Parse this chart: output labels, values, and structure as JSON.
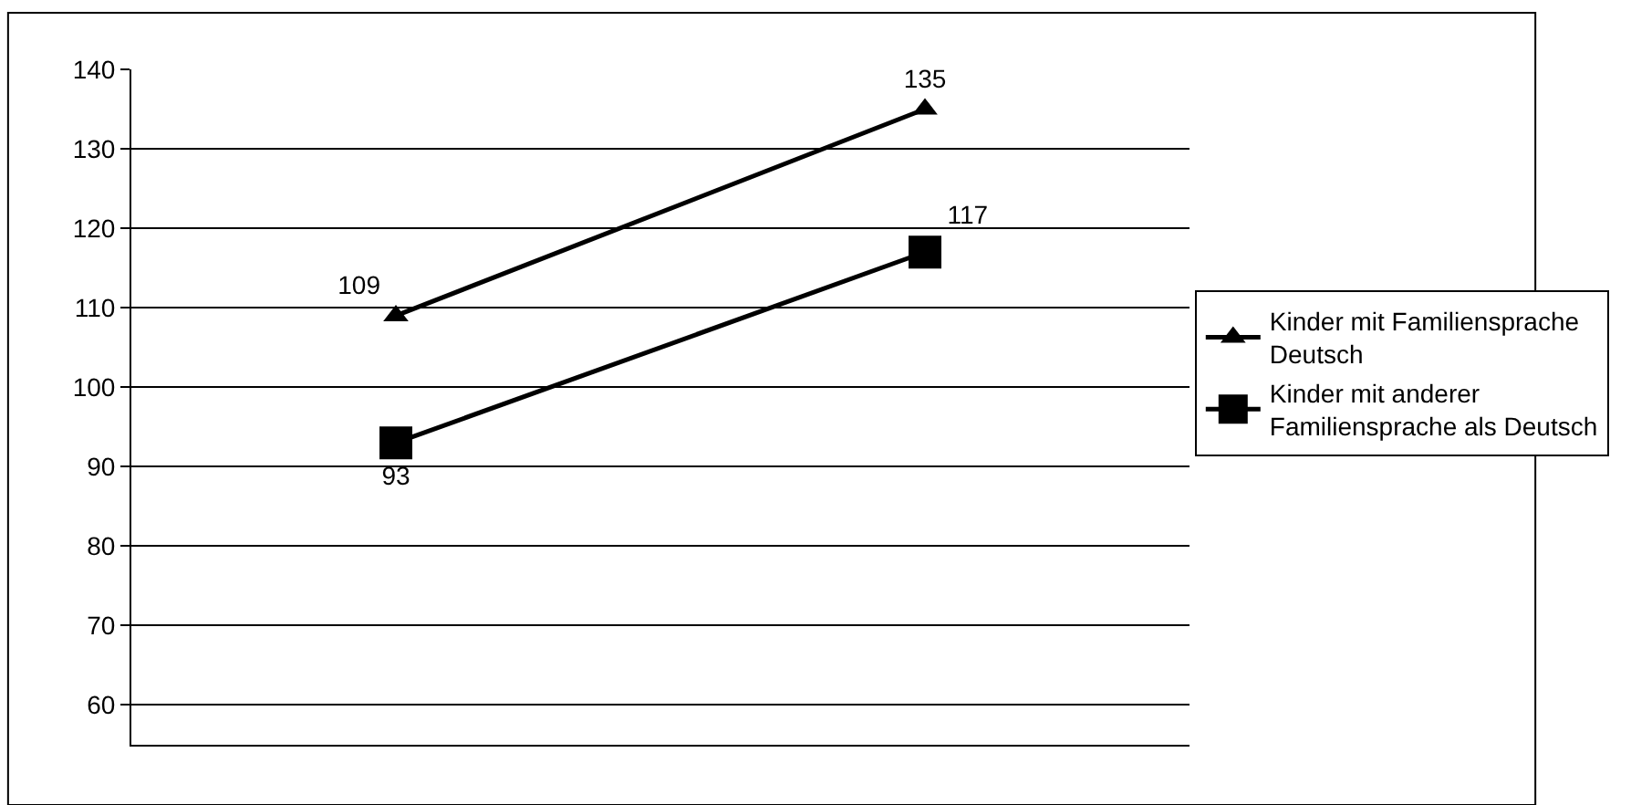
{
  "chart_data": {
    "type": "line",
    "categories": [
      null,
      null
    ],
    "series": [
      {
        "name": "Kinder mit Familiensprache Deutsch",
        "color": "#000000",
        "values": [
          109,
          135
        ],
        "marker": "triangle"
      },
      {
        "name": "Kinder mit anderer Familiensprache als Deutsch",
        "color": "#000000",
        "values": [
          93,
          117
        ],
        "marker": "square"
      }
    ],
    "ylim": [
      55,
      140
    ],
    "yticks": [
      60,
      70,
      80,
      90,
      100,
      110,
      120,
      130,
      140
    ],
    "grid": "y",
    "legend": "right",
    "data_labels": true,
    "line_style": "solid"
  }
}
